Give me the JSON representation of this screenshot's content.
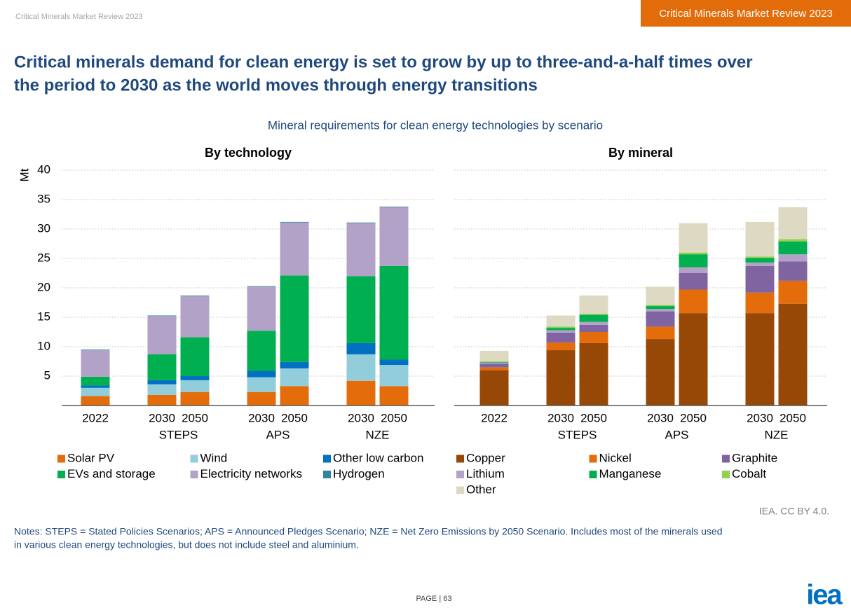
{
  "page": {
    "header": "Critical Minerals Market Review 2023",
    "badge": "Critical Minerals Market Review 2023",
    "title_lines": [
      "Critical minerals demand for clean energy is set to grow by up to three-and-a-half times over",
      "the period to 2030 as the world moves through energy transitions"
    ],
    "subtitle": "Mineral requirements for clean energy technologies by scenario",
    "source": "IEA. CC BY 4.0.",
    "notes": [
      "Notes: STEPS = Stated Policies Scenarios; APS = Announced Pledges Scenario; NZE = Net Zero Emissions by 2050 Scenario. Includes most of the minerals used",
      "in various clean energy technologies, but does not include steel and aluminium."
    ],
    "page_number": "PAGE | 63",
    "logo": "iea"
  },
  "chart_data": [
    {
      "type": "stacked-bar",
      "title": "By technology",
      "ylabel": "Mt",
      "categories": [
        "2022",
        "2030",
        "2050",
        "2030",
        "2050",
        "2030",
        "2050"
      ],
      "groups": [
        "STEPS",
        "APS",
        "NZE"
      ],
      "ylim": [
        0,
        40
      ],
      "yticks": [
        5,
        10,
        15,
        20,
        25,
        30,
        35,
        40
      ],
      "grid": true,
      "series": [
        {
          "name": "Solar PV",
          "color": "#e46c0a",
          "values": [
            1.6,
            1.8,
            2.3,
            2.3,
            3.3,
            4.2,
            3.3
          ]
        },
        {
          "name": "Wind",
          "color": "#92cddc",
          "values": [
            1.4,
            1.8,
            2.0,
            2.5,
            3.0,
            4.5,
            3.6
          ]
        },
        {
          "name": "Other low carbon",
          "color": "#0070c0",
          "values": [
            0.4,
            0.7,
            0.7,
            1.1,
            1.1,
            1.9,
            0.9
          ]
        },
        {
          "name": "EVs and storage",
          "color": "#00b050",
          "values": [
            1.5,
            4.4,
            6.6,
            6.8,
            14.7,
            11.4,
            15.9
          ]
        },
        {
          "name": "Electricity networks",
          "color": "#b3a2c7",
          "values": [
            4.5,
            6.5,
            7.0,
            7.5,
            9.0,
            9.0,
            10.0
          ]
        },
        {
          "name": "Hydrogen",
          "color": "#31849b",
          "values": [
            0.1,
            0.1,
            0.1,
            0.1,
            0.1,
            0.1,
            0.1
          ]
        }
      ]
    },
    {
      "type": "stacked-bar",
      "title": "By mineral",
      "categories": [
        "2022",
        "2030",
        "2050",
        "2030",
        "2050",
        "2030",
        "2050"
      ],
      "groups": [
        "STEPS",
        "APS",
        "NZE"
      ],
      "ylim": [
        0,
        40
      ],
      "yticks": [
        5,
        10,
        15,
        20,
        25,
        30,
        35,
        40
      ],
      "grid": true,
      "series": [
        {
          "name": "Copper",
          "color": "#974706",
          "values": [
            6.0,
            9.4,
            10.6,
            11.3,
            15.7,
            15.7,
            17.3
          ]
        },
        {
          "name": "Nickel",
          "color": "#e46c0a",
          "values": [
            0.5,
            1.3,
            1.9,
            2.1,
            4.0,
            3.5,
            3.9
          ]
        },
        {
          "name": "Graphite",
          "color": "#8064a2",
          "values": [
            0.6,
            1.7,
            1.2,
            2.6,
            2.8,
            4.5,
            3.3
          ]
        },
        {
          "name": "Lithium",
          "color": "#b3a2c7",
          "values": [
            0.2,
            0.4,
            0.5,
            0.4,
            1.0,
            0.6,
            1.2
          ]
        },
        {
          "name": "Manganese",
          "color": "#00b050",
          "values": [
            0.1,
            0.4,
            1.2,
            0.5,
            2.2,
            0.8,
            2.2
          ]
        },
        {
          "name": "Cobalt",
          "color": "#92d050",
          "values": [
            0.1,
            0.2,
            0.2,
            0.2,
            0.3,
            0.2,
            0.4
          ]
        },
        {
          "name": "Other",
          "color": "#ddd9c3",
          "values": [
            1.8,
            1.9,
            3.1,
            3.1,
            5.0,
            5.9,
            5.4
          ]
        }
      ]
    }
  ]
}
